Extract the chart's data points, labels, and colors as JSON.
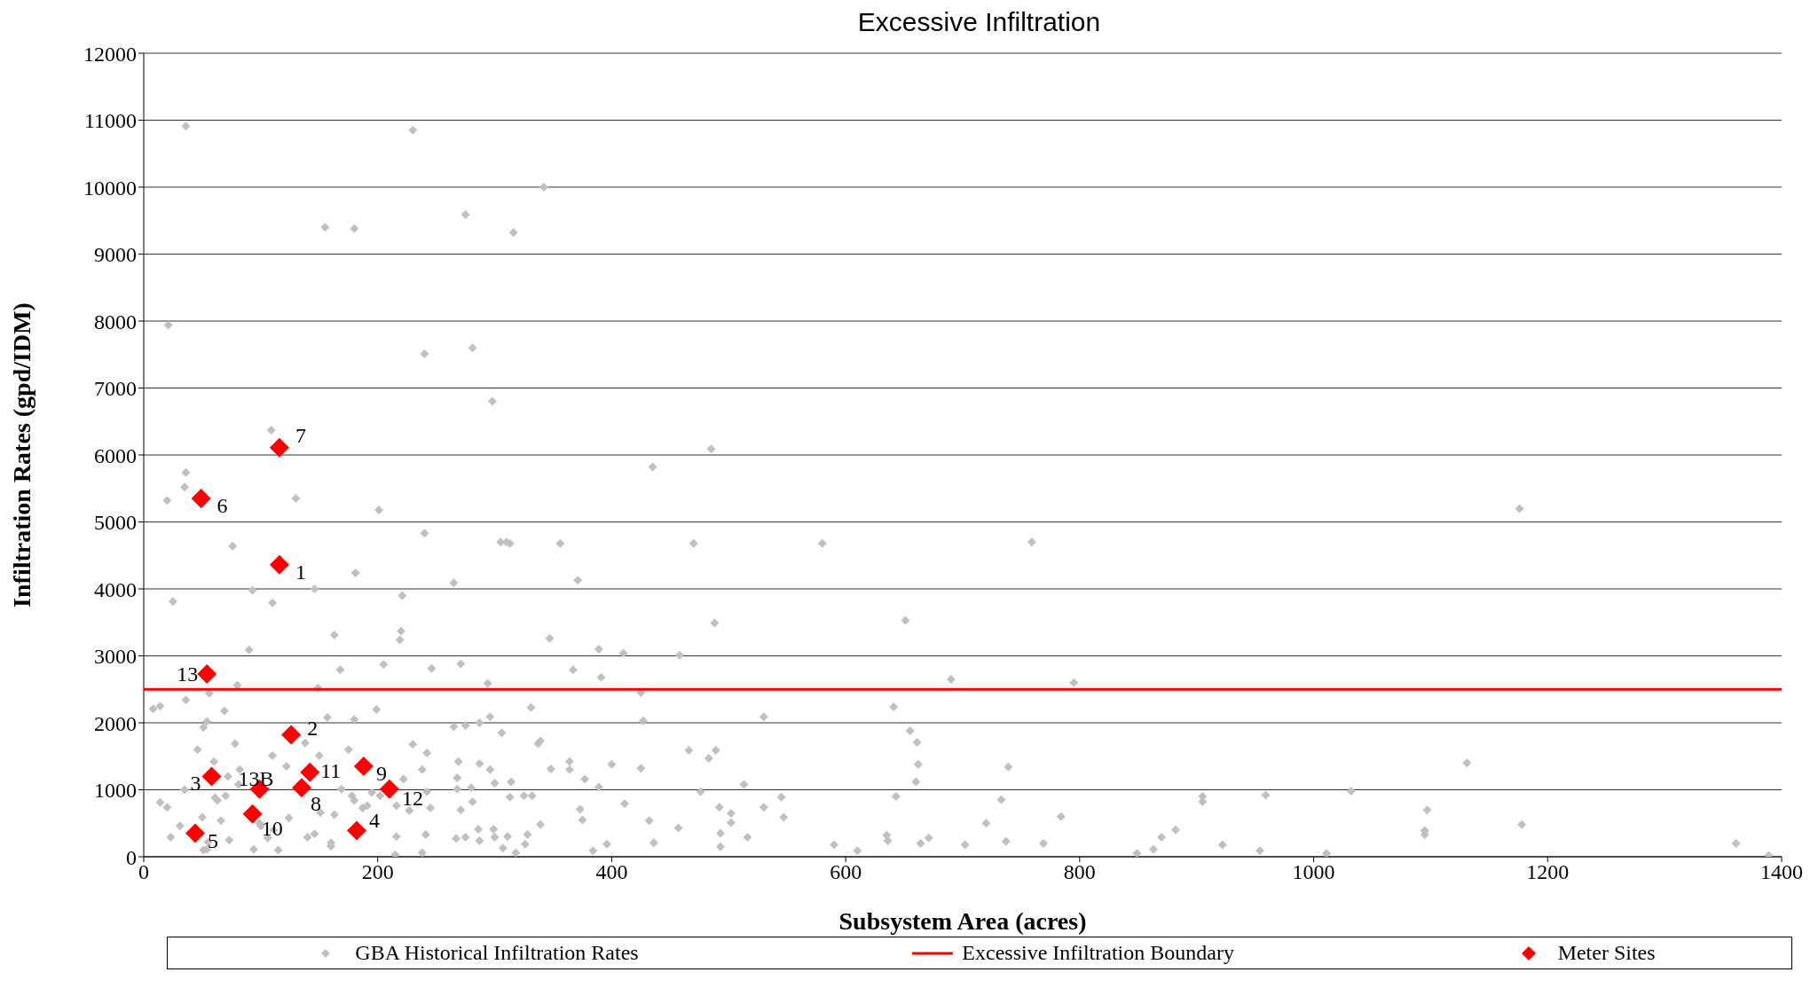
{
  "chart_data": {
    "type": "scatter",
    "title": "Excessive Infiltration",
    "xlabel": "Subsystem Area  (acres)",
    "ylabel": "Infiltration Rates (gpd/IDM)",
    "xlim": [
      0,
      1400
    ],
    "xticks": [
      0,
      200,
      400,
      600,
      800,
      1000,
      1200,
      1400
    ],
    "ylim": [
      0,
      12000
    ],
    "yticks": [
      0,
      1000,
      2000,
      3000,
      4000,
      5000,
      6000,
      7000,
      8000,
      9000,
      10000,
      11000,
      12000
    ],
    "grid": "y",
    "legend": "bottom",
    "annotations": [
      {
        "text": "1",
        "x": 116,
        "y": 4360
      },
      {
        "text": "2",
        "x": 126,
        "y": 1820
      },
      {
        "text": "3",
        "x": 58,
        "y": 1200
      },
      {
        "text": "4",
        "x": 182,
        "y": 390
      },
      {
        "text": "5",
        "x": 44,
        "y": 350
      },
      {
        "text": "6",
        "x": 49,
        "y": 5350
      },
      {
        "text": "7",
        "x": 116,
        "y": 6110
      },
      {
        "text": "8",
        "x": 135,
        "y": 1030
      },
      {
        "text": "9",
        "x": 188,
        "y": 1350
      },
      {
        "text": "10",
        "x": 93,
        "y": 640
      },
      {
        "text": "11",
        "x": 142,
        "y": 1260
      },
      {
        "text": "12",
        "x": 210,
        "y": 1010
      },
      {
        "text": "13",
        "x": 54,
        "y": 2730
      },
      {
        "text": "13B",
        "x": 99,
        "y": 1010
      }
    ],
    "series": [
      {
        "name": "GBA Historical Infiltration Rates",
        "marker": "diamond",
        "color": "#c0c0c0",
        "x": [
          36,
          230,
          155,
          180,
          275,
          316,
          21,
          240,
          281,
          298,
          109,
          342,
          435,
          485,
          356,
          470,
          580,
          313,
          371,
          347,
          488,
          651,
          389,
          410,
          458,
          367,
          391,
          690,
          425,
          331,
          641,
          427,
          530,
          655,
          661,
          662,
          660,
          643,
          635,
          636,
          664,
          671,
          337,
          339,
          348,
          364,
          364,
          377,
          389,
          400,
          411,
          425,
          466,
          489,
          483,
          476,
          513,
          492,
          502,
          502,
          493,
          493,
          516,
          530,
          545,
          547,
          590,
          610,
          373,
          375,
          384,
          396,
          432,
          436,
          457,
          339,
          328,
          326,
          325,
          332,
          759,
          1176,
          795,
          739,
          733,
          720,
          702,
          737,
          769,
          784,
          849,
          863,
          870,
          882,
          905,
          905,
          922,
          954,
          959,
          1011,
          1032,
          1097,
          1095,
          1095,
          1131,
          1178,
          1361,
          1389,
          36,
          35,
          20,
          130,
          201,
          240,
          305,
          310,
          76,
          181,
          265,
          93,
          146,
          25,
          110,
          221,
          163,
          220,
          219,
          90,
          205,
          168,
          246,
          271,
          294,
          80,
          149,
          56,
          36,
          8,
          14,
          69,
          199,
          157,
          180,
          296,
          54,
          51,
          265,
          275,
          287,
          306,
          138,
          78,
          230,
          46,
          175,
          242,
          110,
          60,
          122,
          150,
          269,
          287,
          238,
          296,
          72,
          82,
          222,
          268,
          314,
          300,
          81,
          35,
          169,
          242,
          268,
          280,
          178,
          195,
          202,
          61,
          63,
          70,
          14,
          20,
          180,
          187,
          191,
          216,
          227,
          245,
          281,
          271,
          313,
          151,
          163,
          50,
          66,
          124,
          100,
          99,
          31,
          111,
          23,
          55,
          73,
          106,
          140,
          146,
          160,
          160,
          216,
          241,
          267,
          275,
          286,
          287,
          299,
          300,
          311,
          307,
          51,
          54,
          94,
          115,
          215,
          238,
          318
        ],
        "values": [
          10910,
          10850,
          9400,
          9380,
          9590,
          9320,
          7940,
          7510,
          7600,
          6800,
          6370,
          10000,
          5820,
          6090,
          4680,
          4680,
          4680,
          4680,
          4130,
          3260,
          3490,
          3530,
          3100,
          3040,
          3010,
          2790,
          2680,
          2650,
          2450,
          2230,
          2240,
          2030,
          2090,
          1880,
          1710,
          1380,
          1120,
          900,
          320,
          240,
          200,
          280,
          1690,
          1730,
          1310,
          1420,
          1300,
          1160,
          1040,
          1380,
          790,
          1320,
          1590,
          1590,
          1470,
          970,
          1080,
          740,
          510,
          650,
          350,
          150,
          290,
          740,
          890,
          590,
          180,
          90,
          710,
          550,
          90,
          190,
          540,
          210,
          430,
          480,
          330,
          190,
          910,
          910,
          4700,
          5200,
          2600,
          1340,
          850,
          500,
          180,
          230,
          200,
          600,
          50,
          110,
          290,
          400,
          900,
          820,
          180,
          90,
          920,
          50,
          980,
          700,
          390,
          330,
          1400,
          480,
          200,
          20,
          5740,
          5520,
          5320,
          5350,
          5180,
          4830,
          4700,
          4700,
          4640,
          4240,
          4090,
          3980,
          4000,
          3810,
          3790,
          3900,
          3310,
          3370,
          3240,
          3090,
          2870,
          2790,
          2810,
          2880,
          2590,
          2560,
          2520,
          2440,
          2340,
          2210,
          2250,
          2180,
          2200,
          2080,
          2050,
          2090,
          2020,
          1930,
          1940,
          1960,
          2000,
          1850,
          1700,
          1690,
          1680,
          1600,
          1600,
          1550,
          1510,
          1420,
          1350,
          1510,
          1420,
          1390,
          1300,
          1300,
          1200,
          1300,
          1160,
          1180,
          1120,
          1100,
          1080,
          1000,
          1010,
          970,
          1010,
          1030,
          910,
          960,
          910,
          880,
          840,
          910,
          810,
          740,
          840,
          730,
          760,
          760,
          690,
          730,
          820,
          700,
          890,
          660,
          630,
          590,
          540,
          580,
          460,
          500,
          460,
          400,
          290,
          220,
          250,
          280,
          290,
          340,
          160,
          210,
          300,
          330,
          270,
          290,
          410,
          240,
          410,
          290,
          300,
          130,
          100,
          110,
          110,
          100,
          30,
          60,
          60
        ]
      },
      {
        "name": "Excessive Infiltration Boundary",
        "type": "line",
        "color": "#ff0000",
        "x": [
          0,
          1400
        ],
        "values": [
          2500,
          2500
        ]
      },
      {
        "name": "Meter Sites",
        "marker": "diamond",
        "color": "#ff0000",
        "x": [
          116,
          126,
          58,
          182,
          44,
          49,
          116,
          135,
          188,
          93,
          142,
          210,
          54,
          99
        ],
        "values": [
          4360,
          1820,
          1200,
          390,
          350,
          5350,
          6110,
          1030,
          1350,
          640,
          1260,
          1010,
          2730,
          1010
        ]
      }
    ]
  }
}
